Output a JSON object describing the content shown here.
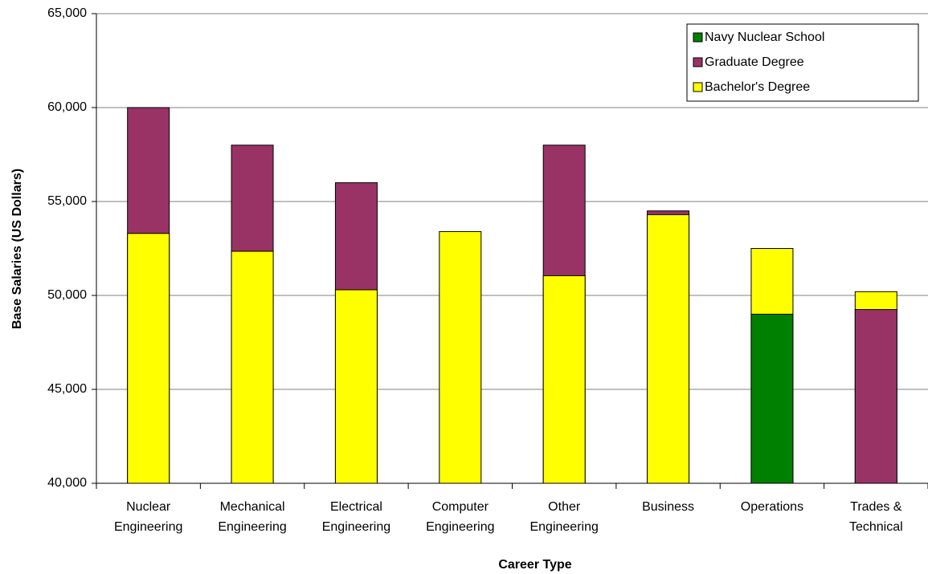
{
  "chart_data": {
    "type": "bar",
    "y_label": "Base Salaries (US Dollars)",
    "x_label": "Career Type",
    "categories": [
      [
        "Nuclear",
        "Engineering"
      ],
      [
        "Mechanical",
        "Engineering"
      ],
      [
        "Electrical",
        "Engineering"
      ],
      [
        "Computer",
        "Engineering"
      ],
      [
        "Other",
        "Engineering"
      ],
      [
        "Business"
      ],
      [
        "Operations"
      ],
      [
        "Trades &",
        "Technical"
      ]
    ],
    "series": [
      {
        "name": "Navy Nuclear School",
        "color": "#008000",
        "values": [
          null,
          null,
          null,
          null,
          null,
          null,
          49000,
          null
        ]
      },
      {
        "name": "Graduate Degree",
        "color": "#993366",
        "values": [
          60000,
          58000,
          56000,
          null,
          58000,
          54500,
          null,
          49250
        ]
      },
      {
        "name": "Bachelor's Degree",
        "color": "#ffff00",
        "values": [
          53300,
          52350,
          50300,
          53400,
          51050,
          54300,
          52500,
          50200
        ]
      }
    ],
    "ylim": [
      40000,
      65000
    ],
    "yticks": [
      {
        "value": 40000,
        "label": "40,000"
      },
      {
        "value": 45000,
        "label": "45,000"
      },
      {
        "value": 50000,
        "label": "50,000"
      },
      {
        "value": 55000,
        "label": "55,000"
      },
      {
        "value": 60000,
        "label": "60,000"
      },
      {
        "value": 65000,
        "label": "65,000"
      }
    ],
    "grid": true,
    "legend": "top-right"
  }
}
